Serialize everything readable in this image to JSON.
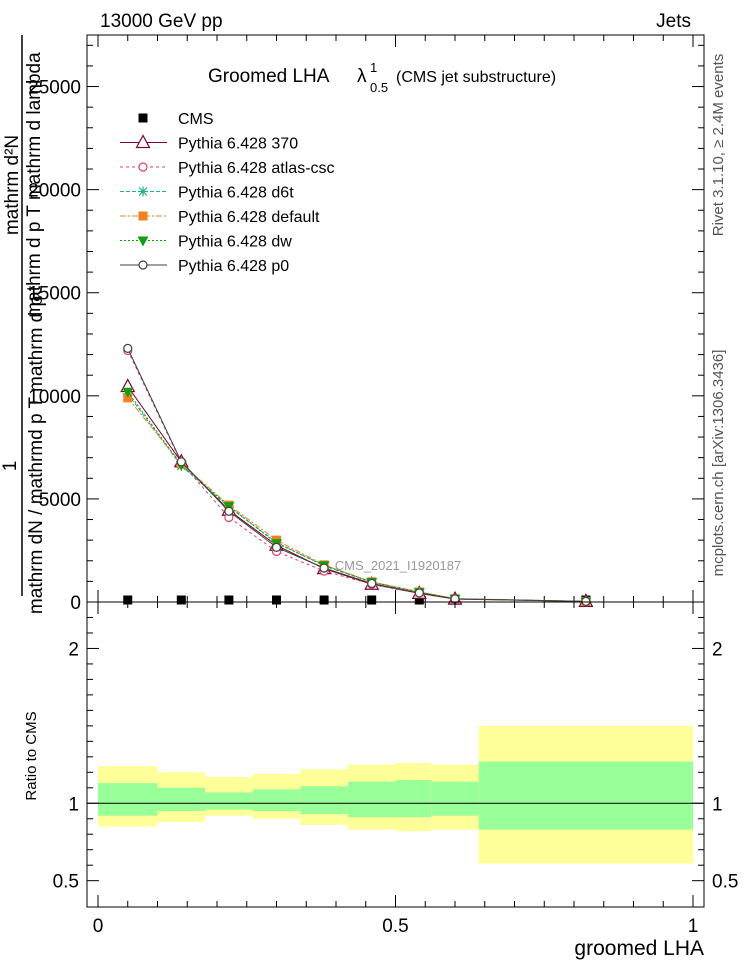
{
  "header": {
    "left": "13000 GeV pp",
    "right": "Jets"
  },
  "side_labels": {
    "rivet": "Rivet 3.1.10, ≥ 2.4M events",
    "mcplots": "mcplots.cern.ch [arXiv:1306.3436]"
  },
  "colors": {
    "cms": "#000000",
    "p370": "#7f0033",
    "atlas": "#e0406a",
    "d6t": "#20b090",
    "default": "#f08020",
    "dw": "#10a010",
    "p0": "#404040",
    "band_outer": "#ffff99",
    "band_inner": "#99ff99"
  },
  "chart_data": [
    {
      "type": "line",
      "title": "Groomed LHA  λ¹₀.₅ (CMS jet substructure)",
      "title_main": "Groomed LHA",
      "title_lambda": "λ",
      "title_sup": "1",
      "title_sub": "0.5",
      "title_suffix": "(CMS jet substructure)",
      "ylabel_lines": [
        "1",
        "mathrm d²N",
        "mathrm dN / mathrmd p  T mathrm d p  T mathrm d lambda"
      ],
      "ylabel_top": "mathrm d²N",
      "ylabel_mid": "mathrm d p  T  mathrm d lambda",
      "ylabel_bottom": "mathrm dN / mathrmd p  T mathrm d p",
      "ylabel_one": "1",
      "xlim": [
        0,
        1
      ],
      "ylim": [
        0,
        27500
      ],
      "y_ticks": [
        0,
        5000,
        10000,
        15000,
        20000,
        25000
      ],
      "y_tick_labels": [
        "0",
        "5000",
        "10000",
        "15000",
        "20000",
        "25000"
      ],
      "legend_position": "top-left",
      "watermark": "CMS_2021_I1920187",
      "series": [
        {
          "name": "CMS",
          "marker": "square",
          "x": [
            0.05,
            0.14,
            0.22,
            0.3,
            0.38,
            0.46,
            0.54,
            0.6,
            0.82
          ],
          "y": [
            0,
            0,
            0,
            0,
            0,
            0,
            0,
            0,
            0
          ]
        },
        {
          "name": "Pythia 6.428 370",
          "marker": "triangle-open",
          "x": [
            0.05,
            0.14,
            0.22,
            0.3,
            0.38,
            0.46,
            0.54,
            0.6,
            0.82
          ],
          "y": [
            10450,
            6800,
            4450,
            2750,
            1620,
            860,
            420,
            140,
            30
          ]
        },
        {
          "name": "Pythia 6.428 atlas-csc",
          "marker": "circle-open",
          "x": [
            0.05,
            0.14,
            0.22,
            0.3,
            0.38,
            0.46,
            0.54,
            0.6,
            0.82
          ],
          "y": [
            12200,
            6750,
            4100,
            2450,
            1500,
            860,
            430,
            150,
            30
          ]
        },
        {
          "name": "Pythia 6.428 d6t",
          "marker": "star",
          "x": [
            0.05,
            0.14,
            0.22,
            0.3,
            0.38,
            0.46,
            0.54,
            0.6,
            0.82
          ],
          "y": [
            10100,
            6600,
            4600,
            2900,
            1750,
            960,
            480,
            160,
            30
          ]
        },
        {
          "name": "Pythia 6.428 default",
          "marker": "square-filled",
          "x": [
            0.05,
            0.14,
            0.22,
            0.3,
            0.38,
            0.46,
            0.54,
            0.6,
            0.82
          ],
          "y": [
            9900,
            6700,
            4700,
            3000,
            1800,
            980,
            490,
            160,
            30
          ]
        },
        {
          "name": "Pythia 6.428 dw",
          "marker": "triangle-down",
          "x": [
            0.05,
            0.14,
            0.22,
            0.3,
            0.38,
            0.46,
            0.54,
            0.6,
            0.82
          ],
          "y": [
            10200,
            6650,
            4650,
            2850,
            1780,
            970,
            480,
            160,
            30
          ]
        },
        {
          "name": "Pythia 6.428 p0",
          "marker": "circle-open",
          "x": [
            0.05,
            0.14,
            0.22,
            0.3,
            0.38,
            0.46,
            0.54,
            0.6,
            0.82
          ],
          "y": [
            12300,
            6800,
            4400,
            2650,
            1650,
            900,
            440,
            150,
            30
          ]
        }
      ]
    },
    {
      "type": "area",
      "ylabel": "Ratio to CMS",
      "xlabel": "groomed LHA",
      "xlim": [
        0,
        1
      ],
      "ylim": [
        0.33,
        2.3
      ],
      "y_ticks": [
        0.5,
        1,
        2
      ],
      "y_tick_labels": [
        "0.5",
        "1",
        "2"
      ],
      "x_ticks": [
        0,
        0.5,
        1
      ],
      "x_tick_labels": [
        "0",
        "0.5",
        "1"
      ],
      "bins": [
        {
          "x0": 0.0,
          "x1": 0.1,
          "outer": [
            0.85,
            1.24
          ],
          "inner": [
            0.92,
            1.13
          ]
        },
        {
          "x0": 0.1,
          "x1": 0.18,
          "outer": [
            0.88,
            1.2
          ],
          "inner": [
            0.95,
            1.1
          ]
        },
        {
          "x0": 0.18,
          "x1": 0.26,
          "outer": [
            0.92,
            1.17
          ],
          "inner": [
            0.96,
            1.07
          ]
        },
        {
          "x0": 0.26,
          "x1": 0.34,
          "outer": [
            0.9,
            1.19
          ],
          "inner": [
            0.95,
            1.09
          ]
        },
        {
          "x0": 0.34,
          "x1": 0.42,
          "outer": [
            0.86,
            1.22
          ],
          "inner": [
            0.93,
            1.11
          ]
        },
        {
          "x0": 0.42,
          "x1": 0.5,
          "outer": [
            0.83,
            1.25
          ],
          "inner": [
            0.91,
            1.14
          ]
        },
        {
          "x0": 0.5,
          "x1": 0.56,
          "outer": [
            0.82,
            1.26
          ],
          "inner": [
            0.91,
            1.15
          ]
        },
        {
          "x0": 0.56,
          "x1": 0.64,
          "outer": [
            0.83,
            1.25
          ],
          "inner": [
            0.92,
            1.14
          ]
        },
        {
          "x0": 0.64,
          "x1": 1.0,
          "outer": [
            0.61,
            1.5
          ],
          "inner": [
            0.83,
            1.27
          ]
        }
      ]
    }
  ]
}
